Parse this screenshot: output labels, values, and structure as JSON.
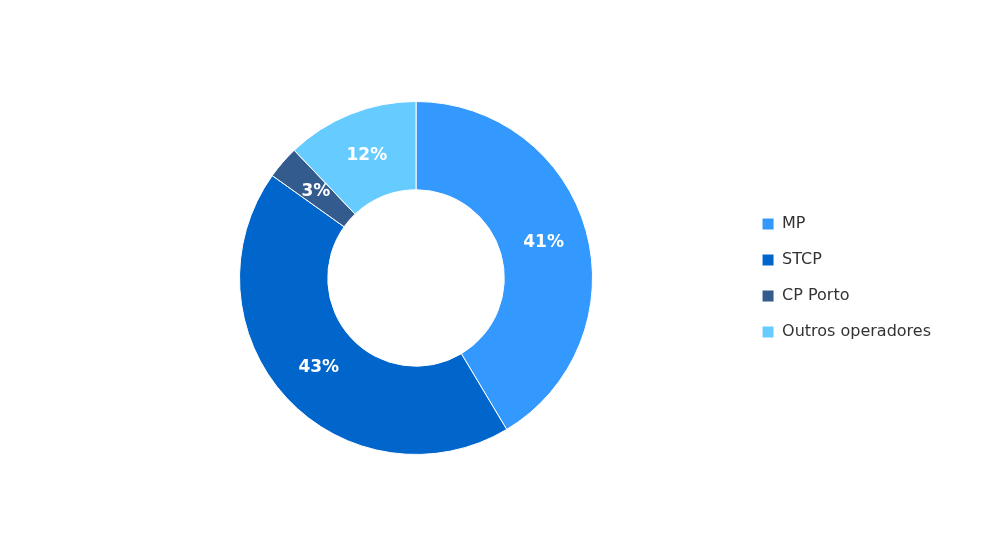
{
  "chart_data": {
    "type": "doughnut",
    "categories": [
      "MP",
      "STCP",
      "CP Porto",
      "Outros operadores"
    ],
    "values": [
      41,
      43,
      3,
      12
    ],
    "value_labels": [
      "41%",
      "43%",
      "3%",
      "12%"
    ],
    "colors": [
      "#3399ff",
      "#0066cc",
      "#335b8e",
      "#66ccff"
    ],
    "legend": "right",
    "data_labels": true
  }
}
